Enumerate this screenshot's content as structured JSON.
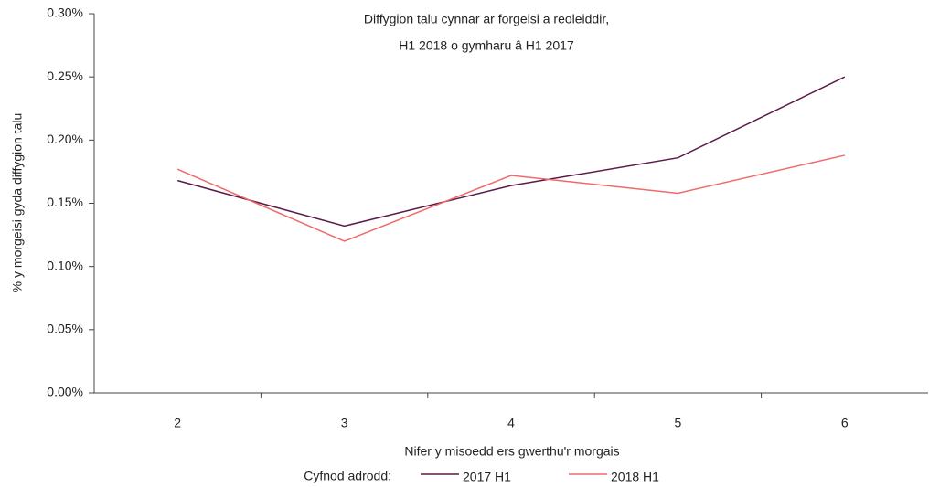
{
  "chart_data": {
    "type": "line",
    "title": [
      "Diffygion talu cynnar ar forgeisi a reoleiddir,",
      "H1 2018 o gymharu â H1 2017"
    ],
    "x_label": "Nifer y misoedd ers gwerthu'r morgais",
    "y_label": "% y morgeisi gyda diffygion talu",
    "legend_title": "Cyfnod adrodd:",
    "categories": [
      "2",
      "3",
      "4",
      "5",
      "6"
    ],
    "series": [
      {
        "name": "2017 H1",
        "color": "#5c1a47",
        "values": [
          0.168,
          0.132,
          0.164,
          0.186,
          0.25
        ]
      },
      {
        "name": "2018 H1",
        "color": "#f06a6a",
        "values": [
          0.177,
          0.12,
          0.172,
          0.158,
          0.188
        ]
      }
    ],
    "ylim": [
      0,
      0.3
    ],
    "yticks": [
      {
        "value": 0,
        "label": "0.00%"
      },
      {
        "value": 0.05,
        "label": "0.05%"
      },
      {
        "value": 0.1,
        "label": "0.10%"
      },
      {
        "value": 0.15,
        "label": "0.15%"
      },
      {
        "value": 0.2,
        "label": "0.20%"
      },
      {
        "value": 0.25,
        "label": "0.25%"
      },
      {
        "value": 0.3,
        "label": "0.30%"
      }
    ],
    "grid": false
  }
}
